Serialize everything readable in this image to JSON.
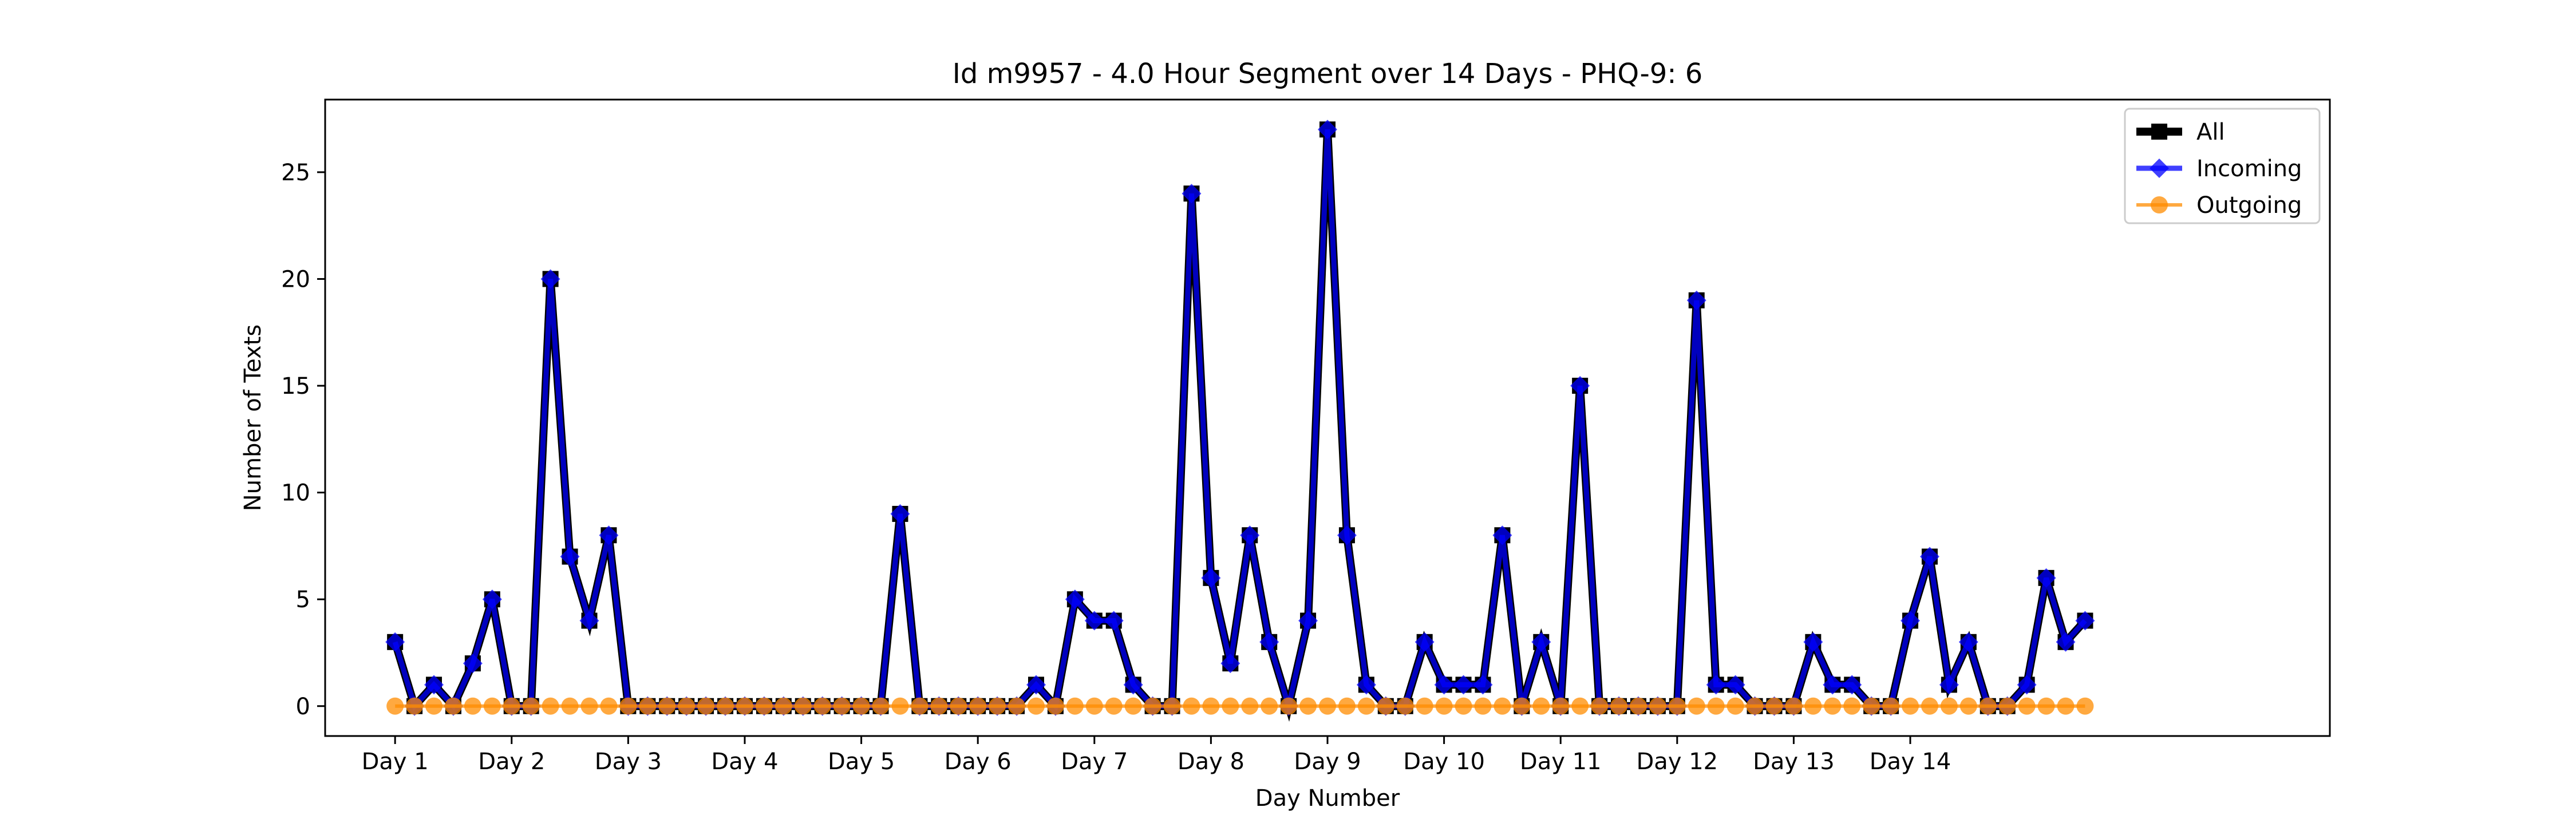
{
  "chart_data": {
    "type": "line",
    "title": "Id m9957 - 4.0 Hour Segment over 14 Days - PHQ-9: 6",
    "xlabel": "Day Number",
    "ylabel": "Number of Texts",
    "ylim": [
      -1.4,
      28.4
    ],
    "xlim": [
      -0.45,
      12.45
    ],
    "yticks": [
      0,
      5,
      10,
      15,
      20,
      25
    ],
    "xticks": [
      {
        "label": "Day 1",
        "x": 0
      },
      {
        "label": "Day 2",
        "x": 0.75
      },
      {
        "label": "Day 3",
        "x": 1.5
      },
      {
        "label": "Day 4",
        "x": 2.25
      },
      {
        "label": "Day 5",
        "x": 3
      },
      {
        "label": "Day 6",
        "x": 3.75
      },
      {
        "label": "Day 7",
        "x": 4.5
      },
      {
        "label": "Day 8",
        "x": 5.25
      },
      {
        "label": "Day 9",
        "x": 6
      },
      {
        "label": "Day 10",
        "x": 6.75
      },
      {
        "label": "Day 11",
        "x": 7.5
      },
      {
        "label": "Day 12",
        "x": 8.25
      },
      {
        "label": "Day 13",
        "x": 9
      },
      {
        "label": "Day 14",
        "x": 9.75
      }
    ],
    "x_step": 0.125,
    "legend_position": "top-right",
    "grid": false,
    "series": [
      {
        "name": "All",
        "color": "#000000",
        "marker": "square",
        "values": [
          3,
          0,
          1,
          0,
          2,
          5,
          0,
          0,
          20,
          7,
          4,
          8,
          0,
          0,
          0,
          0,
          0,
          0,
          0,
          0,
          0,
          0,
          0,
          0,
          0,
          0,
          9,
          0,
          0,
          0,
          0,
          0,
          0,
          1,
          0,
          5,
          4,
          4,
          1,
          0,
          0,
          24,
          6,
          2,
          8,
          3,
          0,
          4,
          27,
          8,
          1,
          0,
          0,
          3,
          1,
          1,
          1,
          8,
          0,
          3,
          0,
          15,
          0,
          0,
          0,
          0,
          0,
          19,
          1,
          1,
          0,
          0,
          0,
          3,
          1,
          1,
          0,
          0,
          4,
          7,
          1,
          3,
          0,
          0,
          1,
          6,
          3,
          4
        ]
      },
      {
        "name": "Incoming",
        "color": "#0000ff",
        "marker": "diamond",
        "values": [
          3,
          0,
          1,
          0,
          2,
          5,
          0,
          0,
          20,
          7,
          4,
          8,
          0,
          0,
          0,
          0,
          0,
          0,
          0,
          0,
          0,
          0,
          0,
          0,
          0,
          0,
          9,
          0,
          0,
          0,
          0,
          0,
          0,
          1,
          0,
          5,
          4,
          4,
          1,
          0,
          0,
          24,
          6,
          2,
          8,
          3,
          0,
          4,
          27,
          8,
          1,
          0,
          0,
          3,
          1,
          1,
          1,
          8,
          0,
          3,
          0,
          15,
          0,
          0,
          0,
          0,
          0,
          19,
          1,
          1,
          0,
          0,
          0,
          3,
          1,
          1,
          0,
          0,
          4,
          7,
          1,
          3,
          0,
          0,
          1,
          6,
          3,
          4
        ]
      },
      {
        "name": "Outgoing",
        "color": "#ff8c00",
        "marker": "circle",
        "values": [
          0,
          0,
          0,
          0,
          0,
          0,
          0,
          0,
          0,
          0,
          0,
          0,
          0,
          0,
          0,
          0,
          0,
          0,
          0,
          0,
          0,
          0,
          0,
          0,
          0,
          0,
          0,
          0,
          0,
          0,
          0,
          0,
          0,
          0,
          0,
          0,
          0,
          0,
          0,
          0,
          0,
          0,
          0,
          0,
          0,
          0,
          0,
          0,
          0,
          0,
          0,
          0,
          0,
          0,
          0,
          0,
          0,
          0,
          0,
          0,
          0,
          0,
          0,
          0,
          0,
          0,
          0,
          0,
          0,
          0,
          0,
          0,
          0,
          0,
          0,
          0,
          0,
          0,
          0,
          0,
          0,
          0,
          0,
          0,
          0,
          0,
          0,
          0
        ]
      }
    ]
  }
}
